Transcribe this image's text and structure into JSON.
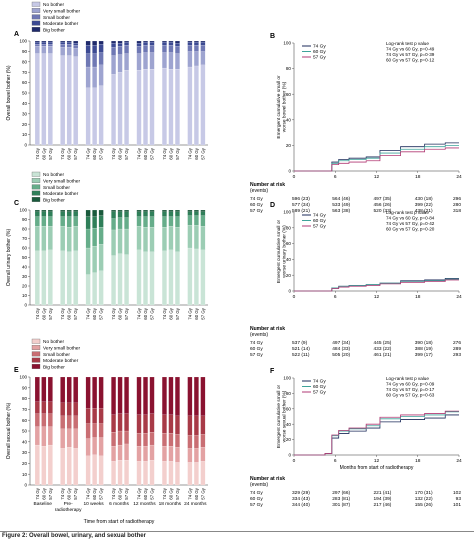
{
  "figure_caption": "Figure 2: Overall bowel, urinary, and sexual bother",
  "bar_x_title": "Time from start of radiotherapy",
  "km_x_title": "Months from start of radiotherapy",
  "timepoints": [
    "Baseline",
    "Pre-\nradiotherapy",
    "10 weeks",
    "6 months",
    "12 months",
    "18 months",
    "24 months"
  ],
  "doses": [
    "74 Gy",
    "60 Gy",
    "57 Gy"
  ],
  "bother_levels": [
    "No bother",
    "Very small bother",
    "Small bother",
    "Moderate bother",
    "Big bother"
  ],
  "number_at_risk_label": "Number at risk",
  "events_label": "(events)",
  "colors": {
    "bowel": [
      "#c7c9e6",
      "#9ea4d0",
      "#6f78b4",
      "#3c4a93",
      "#1f2a6b"
    ],
    "urinary": [
      "#c9e4d6",
      "#9ccdb4",
      "#66ad8a",
      "#2f7f59",
      "#1a5a3c"
    ],
    "sexual": [
      "#f3cfcd",
      "#e3a2a3",
      "#c96e73",
      "#a83a47",
      "#8a1230"
    ],
    "km_74": "#1b2a5a",
    "km_60": "#3ea39a",
    "km_57": "#b23a74"
  },
  "chart_data": [
    {
      "id": "A",
      "type": "bar",
      "subtype": "stacked-percent",
      "ylabel": "Overall bowel bother (%)",
      "ylim": [
        0,
        100
      ],
      "yticks": [
        0,
        10,
        20,
        30,
        40,
        50,
        60,
        70,
        80,
        90,
        100
      ],
      "legend": [
        "No bother",
        "Very small bother",
        "Small bother",
        "Moderate bother",
        "Big bother"
      ],
      "no_bother": [
        88,
        88,
        88,
        86,
        86,
        85,
        55,
        55,
        57,
        68,
        70,
        72,
        72,
        73,
        73,
        74,
        73,
        73,
        75,
        76,
        77
      ],
      "very_small": [
        7,
        7,
        7,
        8,
        8,
        8,
        20,
        20,
        20,
        18,
        17,
        16,
        16,
        16,
        16,
        15,
        16,
        15,
        15,
        14,
        13
      ],
      "small": [
        2,
        2,
        2,
        3,
        3,
        3,
        13,
        13,
        12,
        8,
        8,
        8,
        7,
        7,
        7,
        7,
        7,
        7,
        6,
        6,
        6
      ],
      "moderate": [
        2,
        2,
        2,
        2,
        2,
        2,
        8,
        8,
        8,
        4,
        3,
        3,
        3,
        3,
        3,
        3,
        3,
        3,
        3,
        3,
        3
      ],
      "big": [
        1,
        1,
        1,
        1,
        1,
        2,
        4,
        4,
        3,
        2,
        2,
        1,
        2,
        1,
        1,
        1,
        1,
        2,
        1,
        1,
        1
      ]
    },
    {
      "id": "B",
      "type": "line",
      "subtype": "cumulative-incidence",
      "ylabel": "Emergent cumulative small or worse bowel bother (%)",
      "ylim": [
        0,
        100
      ],
      "yticks": [
        0,
        20,
        40,
        60,
        80,
        100
      ],
      "xticks": [
        0,
        6,
        12,
        18,
        24
      ],
      "xlim": [
        0,
        24
      ],
      "legend": [
        "74 Gy",
        "60 Gy",
        "57 Gy"
      ],
      "test_lines": [
        "Log-rank test p value",
        "74 Gy vs 60 Gy, p=0·49",
        "74 Gy vs 57 Gy, p=0·39",
        "60 Gy vs 57 Gy, p=0·12"
      ],
      "series": [
        {
          "name": "74 Gy",
          "x": [
            0,
            5,
            6,
            7,
            9,
            12,
            13,
            18,
            20,
            24
          ],
          "y": [
            0,
            0,
            7,
            9,
            10,
            11,
            16,
            19,
            21,
            22
          ]
        },
        {
          "name": "60 Gy",
          "x": [
            0,
            5,
            6,
            7,
            9,
            12,
            13,
            18,
            20,
            24
          ],
          "y": [
            0,
            0,
            6,
            8,
            9,
            10,
            14,
            17,
            19,
            20
          ]
        },
        {
          "name": "57 Gy",
          "x": [
            0,
            5,
            6,
            7,
            9,
            12,
            13,
            18,
            20,
            24
          ],
          "y": [
            0,
            0,
            5,
            6,
            7,
            8,
            12,
            15,
            17,
            18
          ]
        }
      ],
      "at_risk": [
        [
          "74 Gy",
          "596 (23)",
          "564 (46)",
          "497 (35)",
          "430 (18)",
          "296"
        ],
        [
          "60 Gy",
          "577 (34)",
          "533 (49)",
          "456 (26)",
          "399 (22)",
          "280"
        ],
        [
          "57 Gy",
          "589 (21)",
          "563 (38)",
          "520 (33)",
          "438 (21)",
          "318"
        ]
      ]
    },
    {
      "id": "C",
      "type": "bar",
      "subtype": "stacked-percent",
      "ylabel": "Overall urinary bother (%)",
      "ylim": [
        0,
        100
      ],
      "yticks": [
        0,
        10,
        20,
        30,
        40,
        50,
        60,
        70,
        80,
        90,
        100
      ],
      "legend": [
        "No bother",
        "Very small bother",
        "Small bother",
        "Moderate bother",
        "Big bother"
      ],
      "no_bother": [
        57,
        57,
        58,
        57,
        56,
        57,
        32,
        34,
        36,
        52,
        54,
        53,
        58,
        56,
        56,
        57,
        58,
        56,
        60,
        59,
        58
      ],
      "very_small": [
        26,
        26,
        25,
        26,
        26,
        26,
        28,
        28,
        28,
        27,
        26,
        27,
        25,
        26,
        26,
        25,
        25,
        26,
        24,
        25,
        25
      ],
      "small": [
        10,
        10,
        10,
        10,
        11,
        10,
        20,
        19,
        18,
        12,
        12,
        12,
        10,
        11,
        11,
        11,
        10,
        11,
        10,
        10,
        11
      ],
      "moderate": [
        5,
        5,
        5,
        5,
        5,
        5,
        13,
        12,
        12,
        7,
        6,
        6,
        5,
        5,
        5,
        5,
        5,
        5,
        4,
        4,
        4
      ],
      "big": [
        2,
        2,
        2,
        2,
        2,
        2,
        7,
        7,
        6,
        2,
        2,
        2,
        2,
        2,
        2,
        2,
        2,
        2,
        2,
        2,
        2
      ]
    },
    {
      "id": "D",
      "type": "line",
      "subtype": "cumulative-incidence",
      "ylabel": "Emergent cumulative small or worse urinary bother (%)",
      "ylim": [
        0,
        100
      ],
      "yticks": [
        0,
        20,
        40,
        60,
        80,
        100
      ],
      "xticks": [
        0,
        6,
        12,
        18,
        24
      ],
      "xlim": [
        0,
        24
      ],
      "legend": [
        "74 Gy",
        "60 Gy",
        "57 Gy"
      ],
      "test_lines": [
        "Log-rank test p value",
        "74 Gy vs 60 Gy, p=0·84",
        "74 Gy vs 57 Gy, p=0·42",
        "60 Gy vs 57 Gy, p=0·20"
      ],
      "series": [
        {
          "name": "74 Gy",
          "x": [
            0,
            5,
            6,
            7,
            9,
            12,
            13,
            18,
            20,
            24
          ],
          "y": [
            0,
            0,
            4,
            6,
            7,
            8,
            10,
            13,
            14,
            16
          ]
        },
        {
          "name": "60 Gy",
          "x": [
            0,
            5,
            6,
            7,
            9,
            12,
            13,
            18,
            20,
            24
          ],
          "y": [
            0,
            0,
            4,
            6,
            7,
            8,
            10,
            12,
            13,
            15
          ]
        },
        {
          "name": "57 Gy",
          "x": [
            0,
            5,
            6,
            7,
            9,
            12,
            13,
            18,
            20,
            24
          ],
          "y": [
            0,
            0,
            3,
            5,
            6,
            7,
            9,
            11,
            12,
            14
          ]
        }
      ],
      "at_risk": [
        [
          "74 Gy",
          "537 (9)",
          "497 (34)",
          "445 (25)",
          "390 (18)",
          "276"
        ],
        [
          "60 Gy",
          "521 (14)",
          "484 (33)",
          "433 (22)",
          "388 (19)",
          "289"
        ],
        [
          "57 Gy",
          "522 (11)",
          "505 (20)",
          "461 (21)",
          "399 (17)",
          "293"
        ]
      ]
    },
    {
      "id": "E",
      "type": "bar",
      "subtype": "stacked-percent",
      "ylabel": "Overall sexual bother (%)",
      "ylim": [
        0,
        100
      ],
      "yticks": [
        0,
        10,
        20,
        30,
        40,
        50,
        60,
        70,
        80,
        90,
        100
      ],
      "legend": [
        "No bother",
        "Very small bother",
        "Small bother",
        "Moderate bother",
        "Big bother"
      ],
      "no_bother": [
        37,
        36,
        37,
        34,
        35,
        34,
        27,
        28,
        27,
        22,
        23,
        23,
        22,
        22,
        23,
        22,
        22,
        21,
        21,
        21,
        22
      ],
      "very_small": [
        17,
        18,
        17,
        18,
        17,
        18,
        16,
        16,
        17,
        14,
        14,
        15,
        14,
        14,
        14,
        14,
        14,
        14,
        13,
        13,
        13
      ],
      "small": [
        12,
        12,
        12,
        12,
        12,
        12,
        14,
        13,
        13,
        13,
        13,
        12,
        12,
        12,
        12,
        12,
        12,
        12,
        12,
        12,
        12
      ],
      "moderate": [
        11,
        11,
        11,
        12,
        12,
        12,
        14,
        14,
        14,
        16,
        16,
        16,
        17,
        17,
        17,
        17,
        17,
        17,
        18,
        18,
        17
      ],
      "big": [
        23,
        23,
        23,
        24,
        24,
        24,
        29,
        29,
        29,
        35,
        34,
        34,
        35,
        35,
        34,
        35,
        35,
        36,
        36,
        36,
        36
      ]
    },
    {
      "id": "F",
      "type": "line",
      "subtype": "cumulative-incidence",
      "ylabel": "Emergent cumulative small or worse sexual bother (%)",
      "ylim": [
        0,
        100
      ],
      "yticks": [
        0,
        20,
        40,
        60,
        80,
        100
      ],
      "xticks": [
        0,
        6,
        12,
        18,
        24
      ],
      "xlim": [
        0,
        24
      ],
      "legend": [
        "74 Gy",
        "60 Gy",
        "57 Gy"
      ],
      "test_lines": [
        "Log-rank test p value",
        "74 Gy vs 60 Gy, p=0·09",
        "74 Gy vs 57 Gy, p=0·17",
        "60 Gy vs 57 Gy, p=0·63"
      ],
      "series": [
        {
          "name": "74 Gy",
          "x": [
            0,
            4,
            5,
            6,
            7,
            9,
            12,
            13,
            18,
            20,
            24
          ],
          "y": [
            0,
            0,
            2,
            22,
            28,
            31,
            35,
            43,
            46,
            48,
            52
          ]
        },
        {
          "name": "60 Gy",
          "x": [
            0,
            4,
            5,
            6,
            7,
            9,
            12,
            13,
            18,
            20,
            24
          ],
          "y": [
            0,
            0,
            2,
            25,
            31,
            34,
            38,
            47,
            50,
            52,
            56
          ]
        },
        {
          "name": "57 Gy",
          "x": [
            0,
            4,
            5,
            6,
            7,
            9,
            12,
            13,
            18,
            20,
            24
          ],
          "y": [
            0,
            0,
            2,
            26,
            32,
            35,
            40,
            49,
            52,
            54,
            57
          ]
        }
      ],
      "at_risk": [
        [
          "74 Gy",
          "329 (29)",
          "297 (66)",
          "221 (41)",
          "170 (31)",
          "102"
        ],
        [
          "60 Gy",
          "334 (43)",
          "283 (81)",
          "194 (39)",
          "132 (22)",
          "93"
        ],
        [
          "57 Gy",
          "344 (40)",
          "301 (87)",
          "217 (46)",
          "155 (26)",
          "101"
        ]
      ]
    }
  ]
}
